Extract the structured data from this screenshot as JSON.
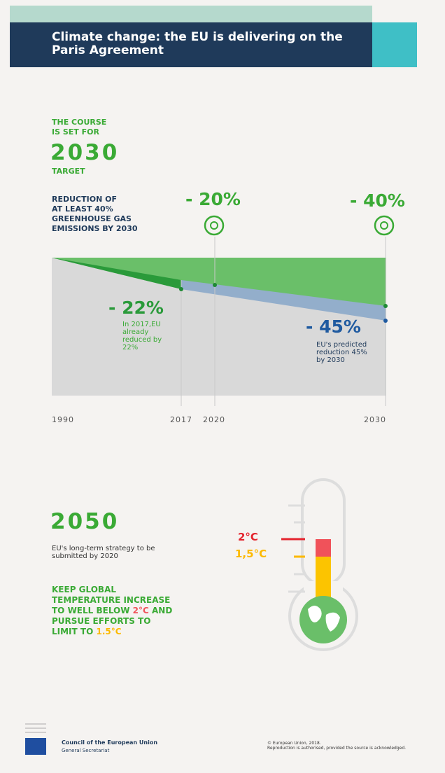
{
  "header": {
    "title": "Climate change: the EU is delivering on the Paris Agreement"
  },
  "target": {
    "lines": [
      "THE COURSE",
      "IS SET FOR"
    ],
    "year": "2030",
    "label": "TARGET"
  },
  "reduction": {
    "lines": [
      "REDUCTION OF",
      "AT LEAST 40%",
      "GREENHOUSE GAS",
      "EMISSIONS BY 2030"
    ]
  },
  "milestones": [
    "- 20%",
    "- 40%"
  ],
  "achieved": {
    "value": "- 22%",
    "text": [
      "In 2017,EU",
      "already",
      "reduced by",
      "22%"
    ]
  },
  "predicted": {
    "value": "- 45%",
    "text": [
      "EU's predicted",
      "reduction 45%",
      "by 2030"
    ]
  },
  "years": [
    "1990",
    "2017",
    "2020",
    "2030"
  ],
  "long_term": {
    "year": "2050",
    "text": [
      "EU's long-term strategy to be",
      "submitted by 2020"
    ]
  },
  "goal": {
    "parts": [
      "KEEP GLOBAL",
      "TEMPERATURE INCREASE",
      "TO WELL BELOW",
      "2°C",
      "AND",
      "PURSUE EFFORTS TO",
      "LIMIT TO",
      "1.5°C"
    ]
  },
  "thermometer": {
    "labels": [
      "2°C",
      "1,5°C"
    ]
  },
  "footer": {
    "org": "Council of the European Union",
    "sub": "General Secretariat",
    "copyright": "© European Union, 2018.",
    "note": "Reproduction is authorised, provided the source is acknowledged."
  }
}
